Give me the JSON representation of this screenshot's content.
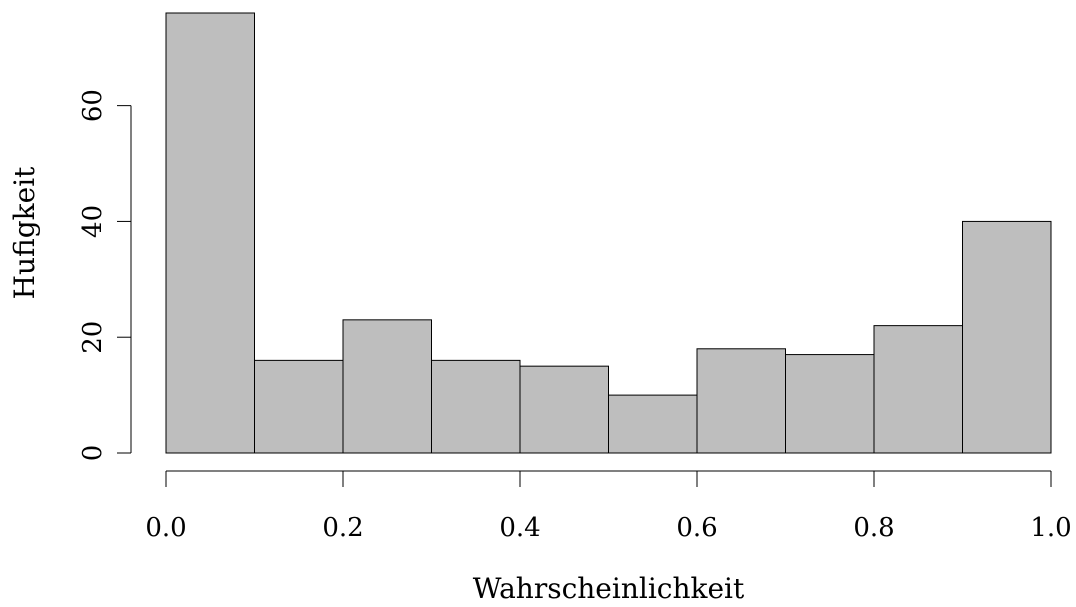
{
  "chart_data": {
    "type": "bar",
    "subtype": "histogram",
    "title": "",
    "xlabel": "Wahrscheinlichkeit",
    "ylabel": "Hufigkeit",
    "bins": [
      {
        "x0": 0.0,
        "x1": 0.1,
        "count": 76
      },
      {
        "x0": 0.1,
        "x1": 0.2,
        "count": 16
      },
      {
        "x0": 0.2,
        "x1": 0.3,
        "count": 23
      },
      {
        "x0": 0.3,
        "x1": 0.4,
        "count": 16
      },
      {
        "x0": 0.4,
        "x1": 0.5,
        "count": 15
      },
      {
        "x0": 0.5,
        "x1": 0.6,
        "count": 10
      },
      {
        "x0": 0.6,
        "x1": 0.7,
        "count": 18
      },
      {
        "x0": 0.7,
        "x1": 0.8,
        "count": 17
      },
      {
        "x0": 0.8,
        "x1": 0.9,
        "count": 22
      },
      {
        "x0": 0.9,
        "x1": 1.0,
        "count": 40
      }
    ],
    "xlim": [
      0.0,
      1.0
    ],
    "ylim": [
      0,
      76
    ],
    "x_ticks": [
      "0.0",
      "0.2",
      "0.4",
      "0.6",
      "0.8",
      "1.0"
    ],
    "y_ticks": [
      "0",
      "20",
      "40",
      "60"
    ],
    "bar_color": "#bebebe",
    "grid": false,
    "legend": "none"
  }
}
